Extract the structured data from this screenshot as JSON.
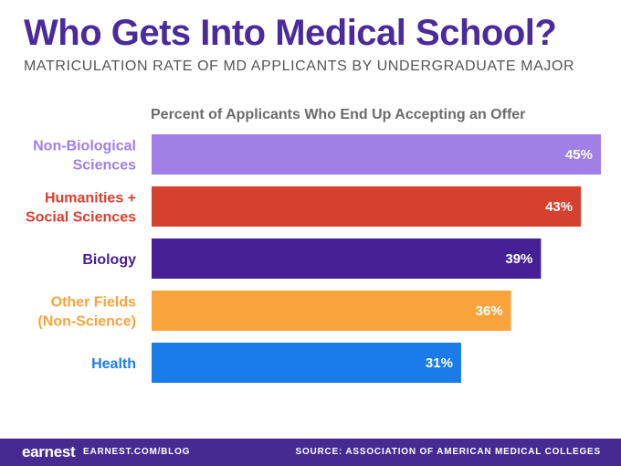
{
  "title": "Who Gets Into Medical School?",
  "subtitle": "MATRICULATION RATE OF MD APPLICANTS BY UNDERGRADUATE MAJOR",
  "footer": {
    "logo": "earnest",
    "blog": "EARNEST.COM/BLOG",
    "source": "SOURCE: ASSOCIATION OF AMERICAN MEDICAL COLLEGES"
  },
  "chart_data": {
    "type": "bar",
    "orientation": "horizontal",
    "title": "Percent of Applicants Who End Up Accepting an Offer",
    "categories": [
      [
        "Non-Biological",
        "Sciences"
      ],
      [
        "Humanities +",
        "Social Sciences"
      ],
      [
        "Biology"
      ],
      [
        "Other Fields",
        "(Non-Science)"
      ],
      [
        "Health"
      ]
    ],
    "values": [
      45,
      43,
      39,
      36,
      31
    ],
    "value_labels": [
      "45%",
      "43%",
      "39%",
      "36%",
      "31%"
    ],
    "colors": [
      "#a07fe6",
      "#d6402f",
      "#452094",
      "#f9a33c",
      "#1a7ce8"
    ],
    "unit": "%",
    "xlim": [
      0,
      45
    ],
    "grid": false,
    "legend": false
  }
}
